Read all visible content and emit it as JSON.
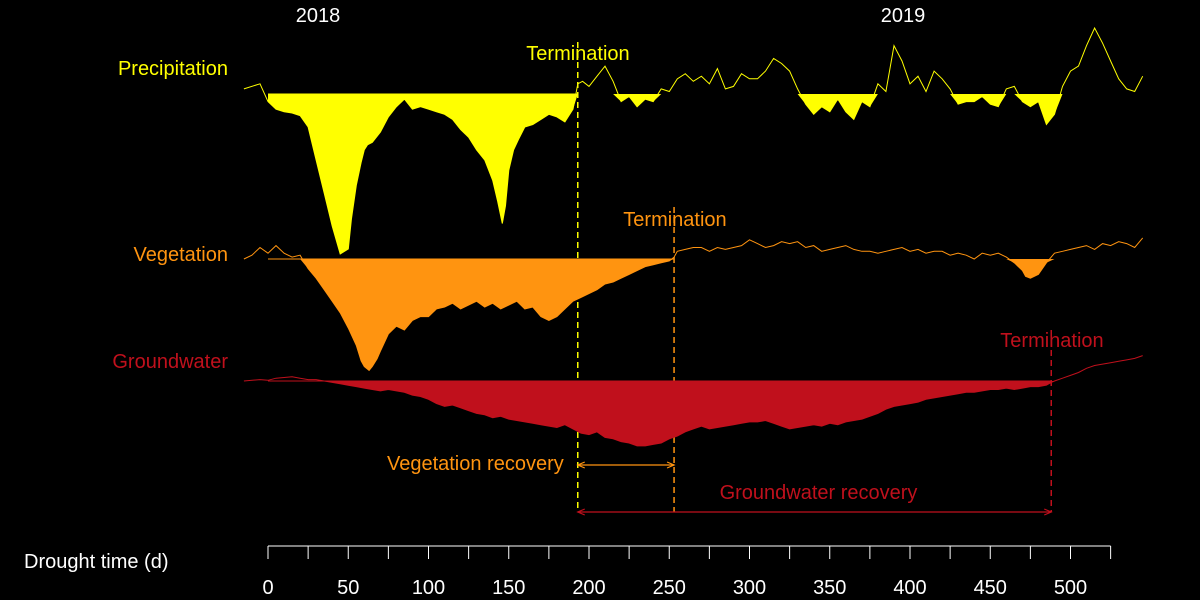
{
  "chart_data": {
    "type": "area",
    "title": "",
    "year_labels": [
      "2018",
      "2019"
    ],
    "xlabel": "Drought time (d)",
    "xlim": [
      0,
      525
    ],
    "x_ticks": [
      0,
      50,
      100,
      150,
      200,
      250,
      300,
      350,
      400,
      450,
      500
    ],
    "x_minor_step": 25,
    "grid": false,
    "legend": "none",
    "termination_label": "Termination",
    "series": [
      {
        "name": "Precipitation",
        "color": "#ffff00",
        "termination_day": 193,
        "x": [
          -15,
          -5,
          0,
          5,
          10,
          15,
          20,
          25,
          30,
          35,
          40,
          45,
          50,
          52,
          55,
          58,
          60,
          62,
          65,
          70,
          75,
          80,
          85,
          90,
          95,
          100,
          105,
          110,
          115,
          120,
          125,
          130,
          135,
          140,
          143,
          146,
          148,
          150,
          153,
          156,
          160,
          165,
          170,
          175,
          180,
          185,
          190,
          193,
          196,
          200,
          205,
          210,
          215,
          220,
          225,
          230,
          235,
          240,
          245,
          250,
          255,
          260,
          265,
          270,
          275,
          280,
          285,
          290,
          295,
          300,
          305,
          310,
          315,
          320,
          325,
          330,
          335,
          340,
          345,
          350,
          355,
          360,
          365,
          370,
          375,
          380,
          385,
          390,
          395,
          400,
          405,
          410,
          415,
          420,
          425,
          430,
          435,
          440,
          445,
          450,
          455,
          460,
          465,
          470,
          475,
          480,
          485,
          490,
          495,
          500,
          505,
          510,
          515,
          520,
          525,
          530,
          535,
          540,
          545
        ],
        "values": [
          0.2,
          0.4,
          -0.3,
          -0.6,
          -0.7,
          -0.75,
          -0.85,
          -1.3,
          -2.6,
          -3.9,
          -5.2,
          -6.3,
          -6.1,
          -4.9,
          -3.6,
          -2.7,
          -2.2,
          -2.0,
          -1.9,
          -1.5,
          -0.9,
          -0.5,
          -0.2,
          -0.6,
          -0.5,
          -0.6,
          -0.7,
          -0.8,
          -1.0,
          -1.4,
          -1.7,
          -2.2,
          -2.6,
          -3.4,
          -4.2,
          -5.1,
          -4.4,
          -3.0,
          -2.2,
          -1.8,
          -1.3,
          -1.2,
          -1.0,
          -0.8,
          -0.9,
          -1.1,
          -0.6,
          0.4,
          0.5,
          0.3,
          0.7,
          1.1,
          0.5,
          -0.3,
          -0.1,
          -0.5,
          -0.2,
          -0.3,
          0.2,
          0.1,
          0.6,
          0.8,
          0.5,
          0.7,
          0.4,
          1.0,
          0.2,
          0.3,
          0.8,
          0.6,
          0.6,
          0.9,
          1.4,
          1.2,
          0.9,
          0.2,
          -0.4,
          -0.8,
          -0.5,
          -0.7,
          -0.2,
          -0.7,
          -1.0,
          -0.3,
          -0.5,
          0.4,
          0.1,
          1.9,
          1.3,
          0.4,
          0.7,
          0.1,
          0.9,
          0.6,
          0.2,
          -0.4,
          -0.3,
          -0.3,
          -0.1,
          -0.4,
          -0.5,
          0.2,
          0.3,
          -0.3,
          -0.5,
          -0.3,
          -1.2,
          -0.8,
          0.3,
          0.9,
          1.1,
          1.9,
          2.6,
          2.0,
          1.3,
          0.6,
          0.2,
          0.1,
          0.7
        ]
      },
      {
        "name": "Vegetation",
        "color": "#ff9410",
        "termination_day": 253,
        "x": [
          -15,
          -10,
          -5,
          0,
          5,
          10,
          15,
          20,
          25,
          30,
          35,
          40,
          45,
          50,
          55,
          58,
          60,
          63,
          65,
          68,
          70,
          75,
          80,
          85,
          90,
          95,
          100,
          105,
          110,
          115,
          120,
          125,
          130,
          135,
          140,
          145,
          150,
          155,
          160,
          165,
          170,
          175,
          180,
          185,
          190,
          195,
          200,
          205,
          210,
          215,
          220,
          225,
          230,
          235,
          240,
          245,
          250,
          253,
          255,
          260,
          265,
          270,
          275,
          280,
          285,
          290,
          295,
          300,
          305,
          310,
          315,
          320,
          325,
          330,
          335,
          340,
          345,
          350,
          355,
          360,
          365,
          370,
          375,
          380,
          385,
          390,
          395,
          400,
          405,
          410,
          415,
          420,
          425,
          430,
          435,
          440,
          445,
          450,
          455,
          460,
          465,
          470,
          472,
          475,
          480,
          485,
          490,
          495,
          500,
          505,
          510,
          515,
          520,
          525,
          530,
          535,
          540,
          545
        ],
        "values": [
          0.0,
          0.2,
          0.6,
          0.3,
          0.7,
          0.3,
          0.1,
          0.2,
          -0.5,
          -1.0,
          -1.6,
          -2.2,
          -2.8,
          -3.6,
          -4.5,
          -5.3,
          -5.6,
          -5.8,
          -5.6,
          -5.2,
          -4.8,
          -3.9,
          -3.5,
          -3.7,
          -3.2,
          -3.0,
          -3.0,
          -2.6,
          -2.5,
          -2.3,
          -2.6,
          -2.4,
          -2.2,
          -2.5,
          -2.3,
          -2.6,
          -2.4,
          -2.2,
          -2.6,
          -2.5,
          -3.0,
          -3.2,
          -3.0,
          -2.6,
          -2.2,
          -2.0,
          -1.8,
          -1.6,
          -1.3,
          -1.2,
          -1.0,
          -0.8,
          -0.6,
          -0.4,
          -0.3,
          -0.2,
          -0.1,
          0.1,
          0.4,
          0.5,
          0.6,
          0.6,
          0.4,
          0.6,
          0.5,
          0.6,
          0.7,
          1.0,
          0.8,
          0.6,
          0.7,
          0.9,
          0.8,
          0.9,
          0.6,
          0.7,
          0.4,
          0.5,
          0.6,
          0.7,
          0.5,
          0.4,
          0.4,
          0.3,
          0.4,
          0.5,
          0.6,
          0.4,
          0.5,
          0.3,
          0.4,
          0.4,
          0.2,
          0.3,
          0.2,
          0.0,
          0.3,
          0.2,
          0.3,
          0.1,
          -0.2,
          -0.6,
          -0.9,
          -1.0,
          -0.8,
          -0.2,
          0.3,
          0.4,
          0.5,
          0.6,
          0.7,
          0.5,
          0.8,
          0.7,
          0.9,
          0.8,
          0.6,
          1.1
        ]
      },
      {
        "name": "Groundwater",
        "color": "#c0101c",
        "termination_day": 488,
        "x": [
          -15,
          -5,
          0,
          5,
          10,
          15,
          20,
          25,
          30,
          35,
          40,
          45,
          50,
          55,
          60,
          65,
          70,
          75,
          80,
          85,
          90,
          95,
          100,
          105,
          110,
          115,
          120,
          125,
          130,
          135,
          140,
          145,
          150,
          155,
          160,
          165,
          170,
          175,
          180,
          185,
          190,
          195,
          200,
          205,
          210,
          215,
          220,
          225,
          230,
          235,
          240,
          245,
          250,
          255,
          260,
          265,
          270,
          275,
          280,
          285,
          290,
          295,
          300,
          305,
          310,
          315,
          320,
          325,
          330,
          335,
          340,
          345,
          350,
          355,
          360,
          365,
          370,
          375,
          380,
          385,
          390,
          395,
          400,
          405,
          410,
          415,
          420,
          425,
          430,
          435,
          440,
          445,
          450,
          455,
          460,
          465,
          470,
          475,
          480,
          485,
          488,
          490,
          495,
          500,
          505,
          510,
          515,
          520,
          525,
          530,
          535,
          540,
          545
        ],
        "values": [
          0.0,
          0.1,
          0.05,
          0.2,
          0.25,
          0.3,
          0.2,
          0.1,
          0.1,
          0.0,
          -0.1,
          -0.2,
          -0.3,
          -0.4,
          -0.5,
          -0.6,
          -0.7,
          -0.6,
          -0.7,
          -0.8,
          -1.0,
          -1.1,
          -1.3,
          -1.6,
          -1.8,
          -1.7,
          -1.9,
          -2.1,
          -2.3,
          -2.4,
          -2.6,
          -2.5,
          -2.7,
          -2.8,
          -2.9,
          -3.0,
          -3.1,
          -3.2,
          -3.3,
          -3.1,
          -3.4,
          -3.7,
          -3.8,
          -3.6,
          -4.0,
          -4.1,
          -4.3,
          -4.4,
          -4.6,
          -4.6,
          -4.5,
          -4.4,
          -4.1,
          -3.9,
          -3.6,
          -3.4,
          -3.2,
          -3.4,
          -3.3,
          -3.2,
          -3.1,
          -3.0,
          -2.9,
          -2.9,
          -2.8,
          -3.0,
          -3.2,
          -3.4,
          -3.3,
          -3.2,
          -3.1,
          -3.2,
          -3.0,
          -3.1,
          -2.9,
          -2.8,
          -2.7,
          -2.5,
          -2.3,
          -2.0,
          -1.8,
          -1.7,
          -1.6,
          -1.5,
          -1.3,
          -1.2,
          -1.1,
          -1.0,
          -0.9,
          -0.8,
          -0.8,
          -0.7,
          -0.6,
          -0.6,
          -0.5,
          -0.6,
          -0.5,
          -0.4,
          -0.4,
          -0.3,
          -0.1,
          0.0,
          0.2,
          0.4,
          0.6,
          0.9,
          1.1,
          1.2,
          1.3,
          1.4,
          1.5,
          1.6,
          1.8
        ]
      }
    ],
    "recovery_spans": [
      {
        "label": "Vegetation recovery",
        "from_day": 193,
        "to_day": 253,
        "color": "#ff9410"
      },
      {
        "label": "Groundwater recovery",
        "from_day": 193,
        "to_day": 488,
        "color": "#c0101c"
      }
    ]
  }
}
